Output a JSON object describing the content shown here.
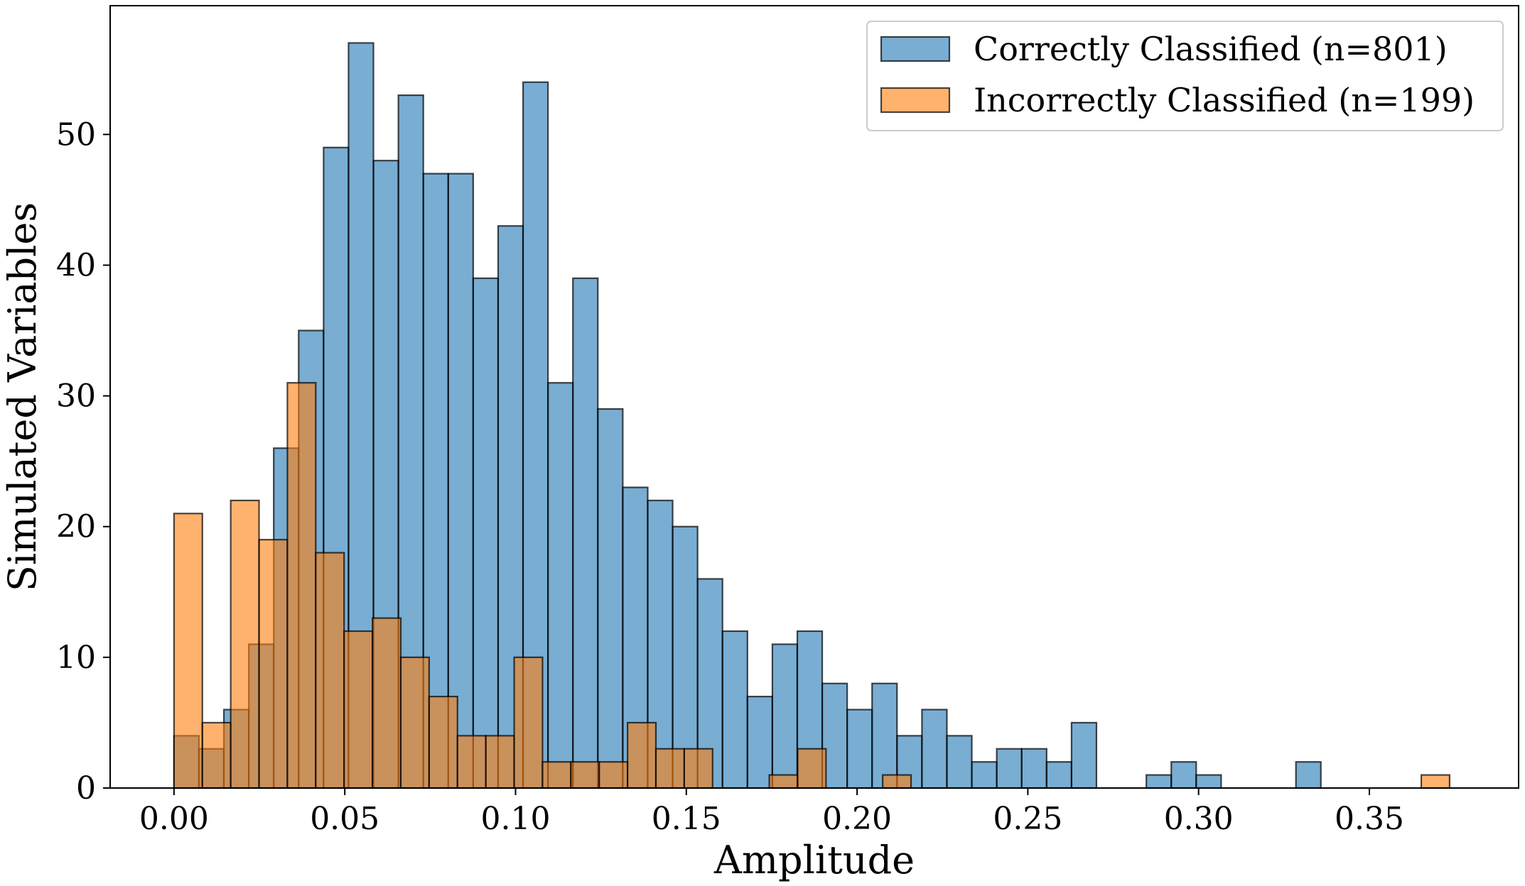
{
  "chart_data": {
    "type": "histogram",
    "title": "",
    "xlabel": "Amplitude",
    "ylabel": "Simulated Variables",
    "xlim": [
      -0.0187,
      0.3937
    ],
    "ylim": [
      0,
      59.85
    ],
    "xticks": [
      "0.00",
      "0.05",
      "0.10",
      "0.15",
      "0.20",
      "0.25",
      "0.30",
      "0.35"
    ],
    "xtick_values": [
      0.0,
      0.05,
      0.1,
      0.15,
      0.2,
      0.25,
      0.3,
      0.35
    ],
    "yticks": [
      "0",
      "10",
      "20",
      "30",
      "40",
      "50"
    ],
    "ytick_values": [
      0,
      10,
      20,
      30,
      40,
      50
    ],
    "legend_position": "top-right",
    "series": [
      {
        "name": "Correctly Classified (n=801)",
        "color": "#1f77b4",
        "bin_start": 0.0,
        "bin_width": 0.0073,
        "counts": [
          4,
          3,
          6,
          11,
          26,
          35,
          49,
          57,
          48,
          53,
          47,
          47,
          39,
          43,
          54,
          31,
          39,
          29,
          23,
          22,
          20,
          16,
          12,
          7,
          11,
          12,
          8,
          6,
          8,
          4,
          6,
          4,
          2,
          3,
          3,
          2,
          5,
          0,
          0,
          1,
          2,
          1,
          0,
          0,
          0,
          2,
          0,
          0,
          0,
          0,
          0,
          0
        ]
      },
      {
        "name": "Incorrectly Classified (n=199)",
        "color": "#ff7f0e",
        "bin_start": 0.0,
        "bin_width": 0.0083,
        "counts": [
          21,
          5,
          22,
          19,
          31,
          18,
          12,
          13,
          10,
          7,
          4,
          4,
          10,
          2,
          2,
          2,
          5,
          3,
          3,
          0,
          0,
          1,
          3,
          0,
          0,
          1,
          0,
          0,
          0,
          0,
          0,
          0,
          0,
          0,
          0,
          0,
          0,
          0,
          0,
          0,
          0,
          0,
          0,
          0,
          1
        ]
      }
    ]
  }
}
